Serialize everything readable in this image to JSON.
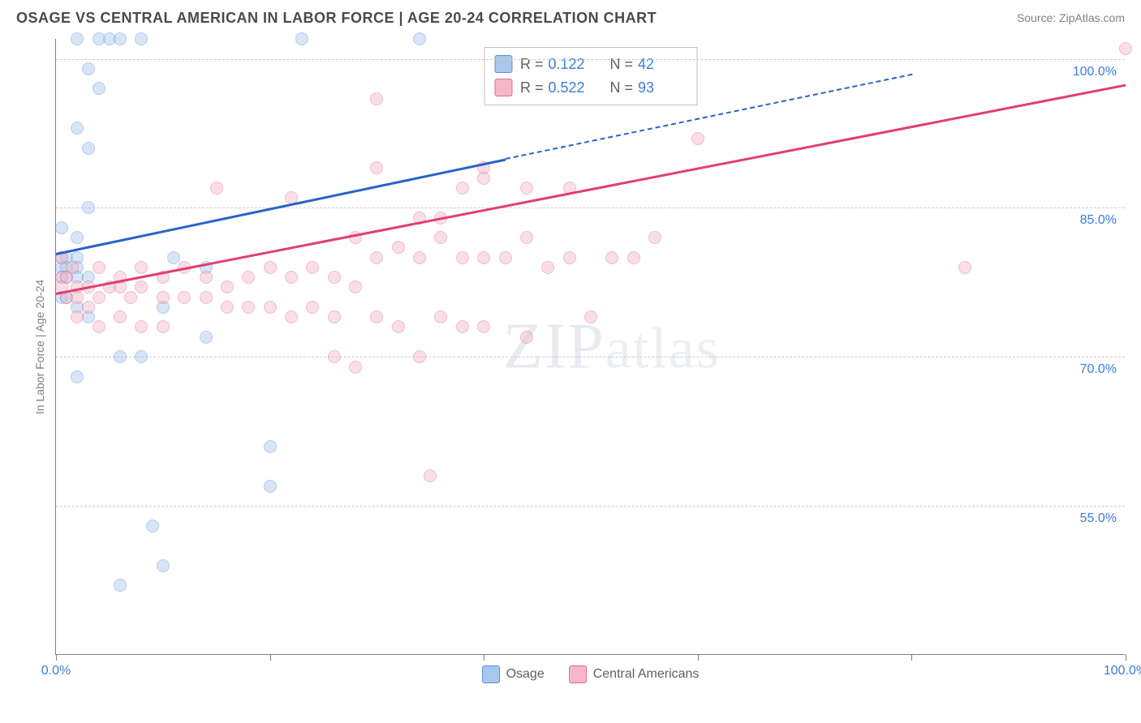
{
  "header": {
    "title": "OSAGE VS CENTRAL AMERICAN IN LABOR FORCE | AGE 20-24 CORRELATION CHART",
    "source": "Source: ZipAtlas.com"
  },
  "chart": {
    "type": "scatter",
    "ylabel": "In Labor Force | Age 20-24",
    "x_domain": [
      0,
      100
    ],
    "y_domain": [
      40,
      102
    ],
    "xticks": [
      0,
      20,
      40,
      60,
      80,
      100
    ],
    "xtick_labels": {
      "0": "0.0%",
      "100": "100.0%"
    },
    "ygrid": [
      {
        "v": 55,
        "label": "55.0%"
      },
      {
        "v": 70,
        "label": "70.0%"
      },
      {
        "v": 85,
        "label": "85.0%"
      },
      {
        "v": 100,
        "label": "100.0%"
      }
    ],
    "ytick_color": "#3b7dd8",
    "xtick_color": "#3b7dd8",
    "grid_color": "#cccccc",
    "axis_color": "#808080",
    "background": "#ffffff",
    "point_radius": 8,
    "point_opacity": 0.45,
    "watermark": "ZIPatlas",
    "series": [
      {
        "name": "Osage",
        "marker_fill": "#a7c7ee",
        "marker_stroke": "#5b8fd6",
        "trend_color": "#2a62c9",
        "trend": {
          "x1": 0,
          "y1": 80.5,
          "x2": 42,
          "y2": 90,
          "dash_to_x": 80,
          "dash_to_y": 98.5
        },
        "stats": {
          "R": "0.122",
          "N": "42"
        },
        "points": [
          [
            2,
            102
          ],
          [
            4,
            102
          ],
          [
            5,
            102
          ],
          [
            6,
            102
          ],
          [
            8,
            102
          ],
          [
            23,
            102
          ],
          [
            34,
            102
          ],
          [
            3,
            99
          ],
          [
            4,
            97
          ],
          [
            2,
            93
          ],
          [
            3,
            91
          ],
          [
            3,
            85
          ],
          [
            0.5,
            83
          ],
          [
            2,
            82
          ],
          [
            0.5,
            80
          ],
          [
            1,
            80
          ],
          [
            2,
            80
          ],
          [
            0.5,
            79
          ],
          [
            1,
            79
          ],
          [
            2,
            79
          ],
          [
            0.5,
            78
          ],
          [
            1,
            78
          ],
          [
            2,
            78
          ],
          [
            3,
            78
          ],
          [
            0.5,
            76
          ],
          [
            1,
            76
          ],
          [
            2,
            75
          ],
          [
            3,
            74
          ],
          [
            14,
            79
          ],
          [
            11,
            80
          ],
          [
            10,
            75
          ],
          [
            6,
            70
          ],
          [
            8,
            70
          ],
          [
            14,
            72
          ],
          [
            2,
            68
          ],
          [
            20,
            61
          ],
          [
            20,
            57
          ],
          [
            9,
            53
          ],
          [
            10,
            49
          ],
          [
            6,
            47
          ]
        ]
      },
      {
        "name": "Central Americans",
        "marker_fill": "#f6b8c8",
        "marker_stroke": "#e06a8c",
        "trend_color": "#e23d74",
        "trend": {
          "x1": 0,
          "y1": 76.5,
          "x2": 100,
          "y2": 97.5
        },
        "stats": {
          "R": "0.522",
          "N": "93"
        },
        "points": [
          [
            100,
            101
          ],
          [
            60,
            92
          ],
          [
            30,
            96
          ],
          [
            40,
            89
          ],
          [
            40,
            88
          ],
          [
            30,
            89
          ],
          [
            34,
            84
          ],
          [
            36,
            84
          ],
          [
            44,
            87
          ],
          [
            38,
            87
          ],
          [
            48,
            87
          ],
          [
            22,
            86
          ],
          [
            15,
            87
          ],
          [
            28,
            82
          ],
          [
            30,
            80
          ],
          [
            32,
            81
          ],
          [
            34,
            80
          ],
          [
            36,
            82
          ],
          [
            38,
            80
          ],
          [
            40,
            80
          ],
          [
            42,
            80
          ],
          [
            44,
            82
          ],
          [
            46,
            79
          ],
          [
            48,
            80
          ],
          [
            52,
            80
          ],
          [
            54,
            80
          ],
          [
            56,
            82
          ],
          [
            85,
            79
          ],
          [
            20,
            79
          ],
          [
            22,
            78
          ],
          [
            24,
            79
          ],
          [
            26,
            78
          ],
          [
            28,
            77
          ],
          [
            12,
            79
          ],
          [
            14,
            78
          ],
          [
            16,
            77
          ],
          [
            18,
            78
          ],
          [
            4,
            79
          ],
          [
            6,
            78
          ],
          [
            8,
            79
          ],
          [
            10,
            78
          ],
          [
            2,
            77
          ],
          [
            3,
            77
          ],
          [
            4,
            76
          ],
          [
            5,
            77
          ],
          [
            6,
            77
          ],
          [
            7,
            76
          ],
          [
            8,
            77
          ],
          [
            10,
            76
          ],
          [
            12,
            76
          ],
          [
            14,
            76
          ],
          [
            16,
            75
          ],
          [
            18,
            75
          ],
          [
            20,
            75
          ],
          [
            22,
            74
          ],
          [
            24,
            75
          ],
          [
            26,
            74
          ],
          [
            30,
            74
          ],
          [
            32,
            73
          ],
          [
            36,
            74
          ],
          [
            38,
            73
          ],
          [
            2,
            74
          ],
          [
            4,
            73
          ],
          [
            6,
            74
          ],
          [
            8,
            73
          ],
          [
            10,
            73
          ],
          [
            40,
            73
          ],
          [
            50,
            74
          ],
          [
            44,
            72
          ],
          [
            26,
            70
          ],
          [
            28,
            69
          ],
          [
            34,
            70
          ],
          [
            35,
            58
          ],
          [
            0.5,
            78
          ],
          [
            1,
            78
          ],
          [
            1.5,
            79
          ],
          [
            0.5,
            77
          ],
          [
            1,
            76
          ],
          [
            2,
            76
          ],
          [
            3,
            75
          ],
          [
            0.5,
            80
          ]
        ]
      }
    ],
    "bottom_legend": [
      {
        "label": "Osage",
        "fill": "#a7c7ee",
        "stroke": "#5b8fd6"
      },
      {
        "label": "Central Americans",
        "fill": "#f6b8c8",
        "stroke": "#e06a8c"
      }
    ]
  }
}
